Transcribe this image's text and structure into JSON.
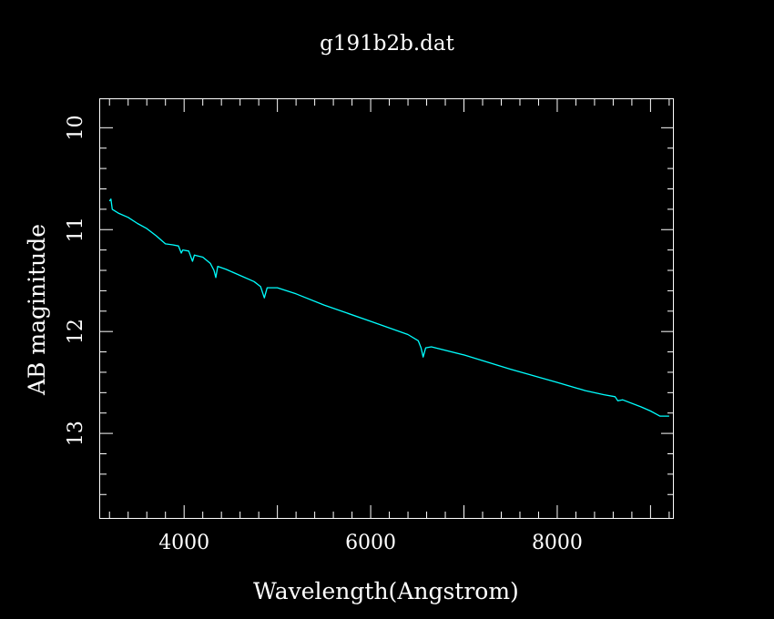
{
  "chart_data": {
    "type": "line",
    "title": "g191b2b.dat",
    "xlabel": "Wavelength(Angstrom)",
    "ylabel": "AB maginitude",
    "xlim": [
      3100,
      9250
    ],
    "ylim": [
      9.72,
      13.83
    ],
    "y_inverted": true,
    "grid": false,
    "background": "#000000",
    "axis_color": "#ffffff",
    "x_ticks": [
      4000,
      6000,
      8000
    ],
    "y_ticks": [
      10,
      11,
      12,
      13
    ],
    "series": [
      {
        "color": "#00ffff",
        "points": [
          [
            3200,
            10.72
          ],
          [
            3215,
            10.7
          ],
          [
            3230,
            10.8
          ],
          [
            3300,
            10.84
          ],
          [
            3400,
            10.88
          ],
          [
            3500,
            10.94
          ],
          [
            3600,
            10.99
          ],
          [
            3700,
            11.06
          ],
          [
            3800,
            11.14
          ],
          [
            3880,
            11.15
          ],
          [
            3940,
            11.16
          ],
          [
            3970,
            11.23
          ],
          [
            3985,
            11.2
          ],
          [
            4050,
            11.21
          ],
          [
            4090,
            11.31
          ],
          [
            4110,
            11.25
          ],
          [
            4200,
            11.27
          ],
          [
            4280,
            11.33
          ],
          [
            4320,
            11.4
          ],
          [
            4340,
            11.47
          ],
          [
            4360,
            11.36
          ],
          [
            4450,
            11.39
          ],
          [
            4600,
            11.45
          ],
          [
            4750,
            11.51
          ],
          [
            4820,
            11.56
          ],
          [
            4860,
            11.67
          ],
          [
            4890,
            11.57
          ],
          [
            5000,
            11.57
          ],
          [
            5200,
            11.63
          ],
          [
            5500,
            11.74
          ],
          [
            6000,
            11.9
          ],
          [
            6400,
            12.03
          ],
          [
            6510,
            12.09
          ],
          [
            6540,
            12.16
          ],
          [
            6563,
            12.25
          ],
          [
            6590,
            12.16
          ],
          [
            6650,
            12.15
          ],
          [
            7000,
            12.23
          ],
          [
            7500,
            12.37
          ],
          [
            8000,
            12.5
          ],
          [
            8300,
            12.58
          ],
          [
            8500,
            12.62
          ],
          [
            8620,
            12.64
          ],
          [
            8650,
            12.68
          ],
          [
            8700,
            12.67
          ],
          [
            8900,
            12.74
          ],
          [
            9000,
            12.78
          ],
          [
            9060,
            12.81
          ],
          [
            9100,
            12.83
          ],
          [
            9200,
            12.83
          ]
        ]
      }
    ]
  }
}
